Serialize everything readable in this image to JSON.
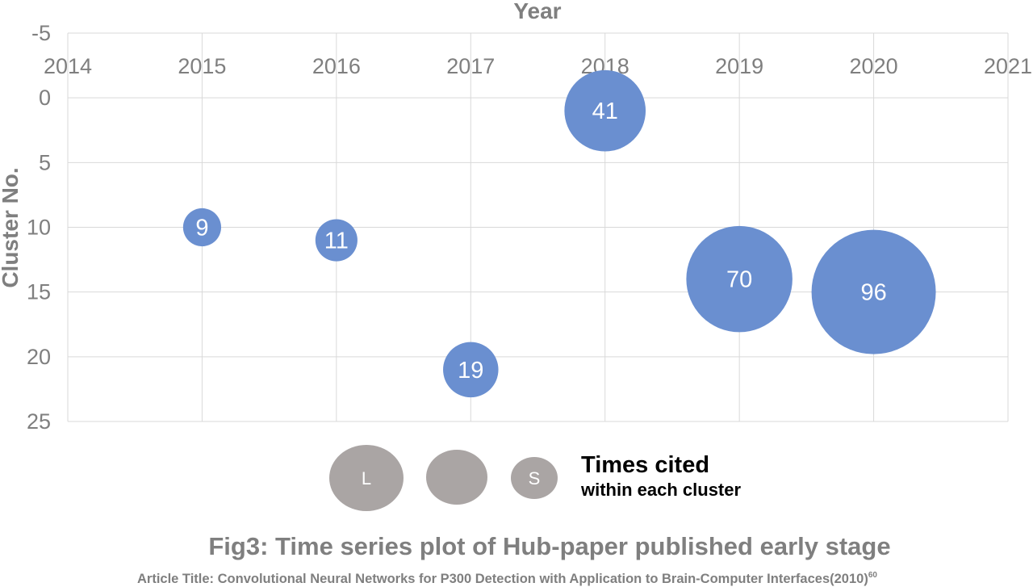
{
  "chart_data": {
    "type": "scatter",
    "subtype": "bubble",
    "xlabel": "Year",
    "ylabel": "Cluster No.",
    "xlim": [
      2014,
      2021
    ],
    "ylim": [
      -5,
      25
    ],
    "y_inverted": true,
    "x_axis_position": "top",
    "x_ticks": [
      "2014",
      "2015",
      "2016",
      "2017",
      "2018",
      "2019",
      "2020",
      "2021"
    ],
    "y_ticks": [
      "-5",
      "0",
      "5",
      "10",
      "15",
      "20",
      "25"
    ],
    "grid": true,
    "bubble_color": "#6a8fd0",
    "points": [
      {
        "x": 2015,
        "y": 10,
        "size": 9,
        "label": "9"
      },
      {
        "x": 2016,
        "y": 11,
        "size": 11,
        "label": "11"
      },
      {
        "x": 2017,
        "y": 21,
        "size": 19,
        "label": "19"
      },
      {
        "x": 2018,
        "y": 1,
        "size": 41,
        "label": "41"
      },
      {
        "x": 2019,
        "y": 14,
        "size": 70,
        "label": "70"
      },
      {
        "x": 2020,
        "y": 15,
        "size": 96,
        "label": "96"
      }
    ],
    "legend": {
      "title": "Times cited",
      "subtitle": "within each cluster",
      "items": [
        {
          "label": "L",
          "level": "large"
        },
        {
          "label": "",
          "level": "medium"
        },
        {
          "label": "S",
          "level": "small"
        }
      ],
      "color": "#aaa5a4"
    }
  },
  "caption": "Fig3: Time series plot of Hub-paper published early stage",
  "article": {
    "text": "Article Title: Convolutional Neural Networks for P300 Detection with Application to Brain-Computer Interfaces(2010)",
    "ref": "60"
  }
}
